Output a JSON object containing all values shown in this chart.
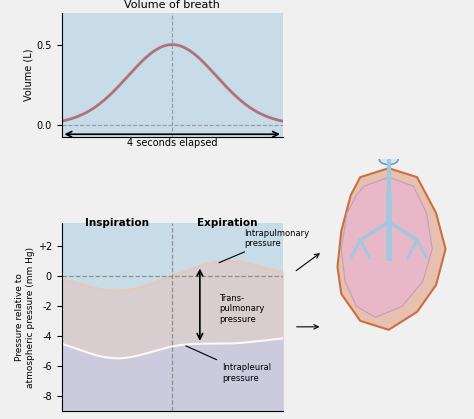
{
  "bg_color": "#c8dce8",
  "fig_bg": "#f0f0f0",
  "top_plot": {
    "title": "Volume of breath",
    "ylabel": "Volume (L)",
    "yticks": [
      0,
      0.5
    ],
    "ylim": [
      -0.08,
      0.7
    ],
    "xlabel_arrow": "4 seconds elapsed",
    "bg_color": "#c8dce8",
    "curve_color": "#b07080",
    "dashed_color": "#888888"
  },
  "bottom_plot": {
    "ylabel": "Pressure relative to\natmospheric pressure (mm Hg)",
    "yticks": [
      -8,
      -6,
      -4,
      -2,
      0,
      2
    ],
    "ytick_labels": [
      "-8",
      "-6",
      "-4",
      "-2",
      "0",
      "+2"
    ],
    "ylim": [
      -9,
      3.5
    ],
    "xlim": [
      0,
      4
    ],
    "bg_color": "#c8dce8",
    "intrapleural_color": "#d0c0d8",
    "intrapulmonary_color": "#e8c0b8",
    "dashed_color": "#888888",
    "insp_label": "Inspiration",
    "exp_label": "Expiration",
    "label_intrapulmonary": [
      "Intrapulmonary",
      "pressure"
    ],
    "label_transpulmonary": [
      "Trans-",
      "pulmonary",
      "pressure"
    ],
    "label_intrapleural": [
      "Intrapleural",
      "pressure"
    ]
  },
  "lung_colors": {
    "outer_fill": "#e8c8b8",
    "outer_stroke": "#c8906070",
    "inner_fill": "#e8b8c8",
    "bronchi_fill": "#a0c8e0",
    "bronchi_stroke": "#6090b0"
  }
}
